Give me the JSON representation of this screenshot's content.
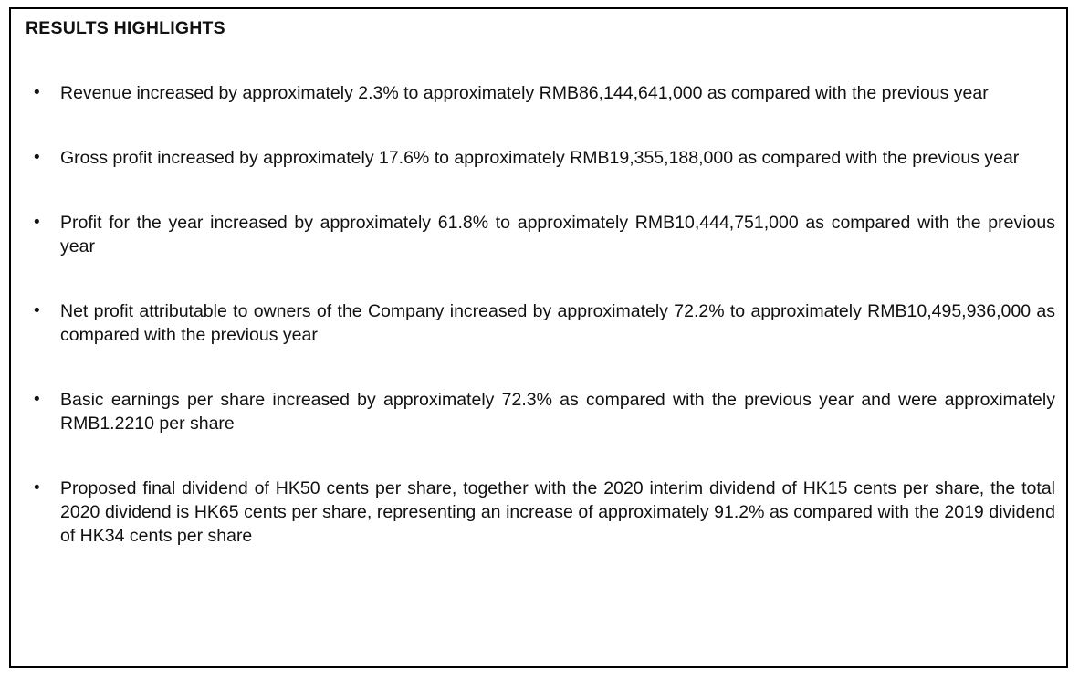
{
  "document": {
    "title": "RESULTS HIGHLIGHTS",
    "bullet_marker": "•",
    "bullets": [
      "Revenue increased by approximately 2.3% to approximately RMB86,144,641,000 as compared with the previous year",
      "Gross profit increased by approximately 17.6% to approximately RMB19,355,188,000 as compared with the previous year",
      "Profit for the year increased by approximately 61.8% to approximately RMB10,444,751,000 as compared with the previous year",
      "Net profit attributable to owners of the Company increased by approximately 72.2% to approximately RMB10,495,936,000 as compared with the previous year",
      "Basic earnings per share increased by approximately 72.3% as compared with the previous year and were approximately RMB1.2210 per share",
      "Proposed final dividend of HK50 cents per share, together with the 2020 interim dividend of HK15 cents per share, the total 2020 dividend is HK65 cents per share, representing an increase of approximately 91.2% as compared with the 2019 dividend of HK34 cents per share"
    ],
    "colors": {
      "text": "#111111",
      "border": "#000000",
      "background": "#ffffff"
    }
  }
}
